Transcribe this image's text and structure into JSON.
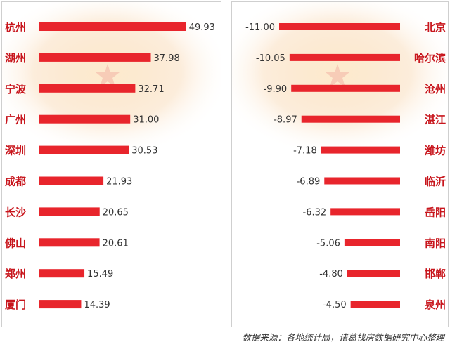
{
  "chart_data": [
    {
      "type": "bar",
      "orientation": "horizontal",
      "categories": [
        "杭州",
        "湖州",
        "宁波",
        "广州",
        "深圳",
        "成都",
        "长沙",
        "佛山",
        "郑州",
        "厦门"
      ],
      "values": [
        49.93,
        37.98,
        32.71,
        31.0,
        30.53,
        21.93,
        20.65,
        20.61,
        15.49,
        14.39
      ],
      "value_labels": [
        "49.93",
        "37.98",
        "32.71",
        "31.00",
        "30.53",
        "21.93",
        "20.65",
        "20.61",
        "15.49",
        "14.39"
      ],
      "xlim": [
        0,
        50
      ],
      "grid": false,
      "colors": {
        "bar": "#e8252c",
        "label": "#c8161d",
        "value": "#333333"
      }
    },
    {
      "type": "bar",
      "orientation": "horizontal",
      "categories": [
        "北京",
        "哈尔滨",
        "沧州",
        "湛江",
        "潍坊",
        "临沂",
        "岳阳",
        "南阳",
        "邯郸",
        "泉州"
      ],
      "values": [
        -11.0,
        -10.05,
        -9.9,
        -8.97,
        -7.18,
        -6.89,
        -6.32,
        -5.06,
        -4.8,
        -4.5
      ],
      "value_labels": [
        "-11.00",
        "-10.05",
        "-9.90",
        "-8.97",
        "-7.18",
        "-6.89",
        "-6.32",
        "-5.06",
        "-4.80",
        "-4.50"
      ],
      "xlim": [
        -11,
        0
      ],
      "grid": false,
      "colors": {
        "bar": "#e8252c",
        "label": "#c8161d",
        "value": "#333333"
      }
    }
  ],
  "footer": {
    "source": "数据来源：各地统计局，诸葛找房数据研究中心整理"
  }
}
